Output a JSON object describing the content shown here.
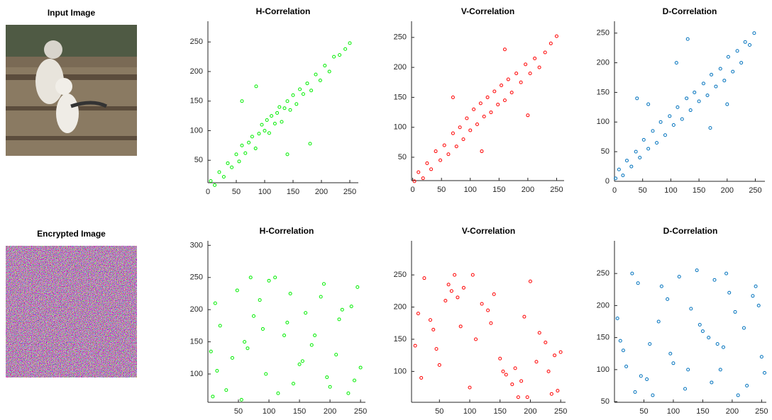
{
  "chart_data": [
    {
      "type": "image",
      "title": "Input Image"
    },
    {
      "type": "scatter",
      "title": "H-Correlation",
      "color": "#00ee00",
      "x": [
        5,
        12,
        20,
        28,
        35,
        42,
        50,
        55,
        60,
        66,
        72,
        78,
        84,
        90,
        95,
        100,
        104,
        108,
        112,
        118,
        122,
        126,
        130,
        135,
        140,
        145,
        150,
        156,
        162,
        168,
        175,
        182,
        190,
        198,
        206,
        214,
        222,
        232,
        242,
        250,
        60,
        85,
        180,
        140
      ],
      "values": [
        15,
        8,
        30,
        22,
        45,
        38,
        60,
        48,
        75,
        62,
        80,
        90,
        70,
        95,
        110,
        100,
        118,
        96,
        125,
        112,
        130,
        140,
        115,
        138,
        150,
        135,
        160,
        145,
        170,
        162,
        180,
        168,
        195,
        185,
        210,
        200,
        225,
        228,
        238,
        248,
        150,
        175,
        78,
        60
      ],
      "xlim": [
        0,
        265
      ],
      "ylim": [
        12,
        285
      ],
      "xticks": [
        0,
        50,
        100,
        150,
        200,
        250
      ],
      "yticks": [
        50,
        100,
        150,
        200,
        250
      ]
    },
    {
      "type": "scatter",
      "title": "V-Correlation",
      "color": "#ff0000",
      "x": [
        3,
        10,
        18,
        25,
        32,
        40,
        48,
        55,
        62,
        70,
        76,
        82,
        88,
        94,
        100,
        106,
        112,
        118,
        124,
        130,
        136,
        142,
        148,
        154,
        160,
        166,
        172,
        180,
        188,
        196,
        204,
        212,
        220,
        230,
        240,
        250,
        70,
        120,
        200,
        160
      ],
      "values": [
        10,
        25,
        15,
        40,
        30,
        60,
        45,
        70,
        55,
        90,
        68,
        100,
        80,
        115,
        95,
        130,
        105,
        140,
        118,
        150,
        125,
        160,
        138,
        170,
        145,
        180,
        158,
        190,
        175,
        205,
        190,
        215,
        200,
        225,
        240,
        252,
        150,
        60,
        120,
        230
      ],
      "xlim": [
        -2,
        263
      ],
      "ylim": [
        11,
        277
      ],
      "xticks": [
        0,
        50,
        100,
        150,
        200,
        250
      ],
      "yticks": [
        50,
        100,
        150,
        200,
        250
      ]
    },
    {
      "type": "scatter",
      "title": "D-Correlation",
      "color": "#0072bd",
      "x": [
        2,
        8,
        15,
        22,
        30,
        38,
        45,
        52,
        60,
        68,
        75,
        82,
        90,
        98,
        105,
        112,
        120,
        128,
        135,
        142,
        150,
        158,
        165,
        172,
        180,
        188,
        195,
        202,
        210,
        218,
        225,
        232,
        240,
        248,
        110,
        60,
        170,
        200,
        40,
        130
      ],
      "values": [
        5,
        20,
        10,
        35,
        25,
        50,
        40,
        70,
        55,
        85,
        65,
        100,
        78,
        110,
        95,
        125,
        105,
        140,
        120,
        150,
        135,
        165,
        145,
        180,
        160,
        190,
        170,
        210,
        185,
        220,
        200,
        235,
        230,
        250,
        200,
        130,
        90,
        130,
        140,
        240
      ],
      "xlim": [
        0,
        267
      ],
      "ylim": [
        0,
        270
      ],
      "xticks": [
        0,
        50,
        100,
        150,
        200,
        250
      ],
      "yticks": [
        0,
        50,
        100,
        150,
        200,
        250
      ]
    },
    {
      "type": "image",
      "title": "Encrypted Image"
    },
    {
      "type": "scatter",
      "title": "H-Correlation",
      "color": "#00ee00",
      "x": [
        12,
        240,
        130,
        65,
        190,
        30,
        155,
        220,
        95,
        48,
        175,
        8,
        210,
        110,
        75,
        250,
        140,
        20,
        185,
        60,
        230,
        100,
        160,
        40,
        200,
        125,
        85,
        245,
        15,
        170,
        55,
        215,
        135,
        5,
        195,
        90,
        235,
        150,
        70,
        115
      ],
      "values": [
        210,
        90,
        180,
        140,
        240,
        75,
        120,
        200,
        100,
        230,
        160,
        65,
        130,
        250,
        190,
        110,
        85,
        175,
        220,
        150,
        70,
        245,
        195,
        125,
        80,
        160,
        215,
        235,
        105,
        145,
        60,
        185,
        225,
        135,
        95,
        170,
        205,
        115,
        250,
        70
      ],
      "xlim": [
        0,
        258
      ],
      "ylim": [
        56,
        307
      ],
      "xticks": [
        50,
        100,
        150,
        200,
        250
      ],
      "yticks": [
        100,
        150,
        200,
        250,
        300
      ]
    },
    {
      "type": "scatter",
      "title": "V-Correlation",
      "color": "#ff0000",
      "x": [
        20,
        200,
        110,
        245,
        60,
        150,
        35,
        180,
        90,
        230,
        130,
        10,
        170,
        75,
        215,
        50,
        140,
        250,
        100,
        190,
        25,
        160,
        85,
        235,
        120,
        45,
        210,
        70,
        185,
        15,
        225,
        105,
        155,
        40,
        195,
        80,
        240,
        135,
        65,
        175
      ],
      "values": [
        90,
        240,
        150,
        70,
        210,
        120,
        180,
        60,
        230,
        100,
        195,
        140,
        80,
        250,
        160,
        110,
        220,
        130,
        75,
        185,
        245,
        95,
        170,
        65,
        205,
        135,
        115,
        225,
        85,
        190,
        145,
        250,
        100,
        165,
        60,
        215,
        125,
        175,
        235,
        105
      ],
      "xlim": [
        4,
        258
      ],
      "ylim": [
        52,
        303
      ],
      "xticks": [
        50,
        100,
        150,
        200,
        250
      ],
      "yticks": [
        100,
        150,
        200,
        250
      ]
    },
    {
      "type": "scatter",
      "title": "D-Correlation",
      "color": "#0072bd",
      "x": [
        5,
        120,
        240,
        60,
        180,
        30,
        150,
        210,
        90,
        250,
        45,
        170,
        15,
        130,
        225,
        75,
        195,
        100,
        160,
        35,
        245,
        110,
        55,
        185,
        140,
        220,
        20,
        80,
        205,
        165,
        10,
        235,
        125,
        65,
        190,
        95,
        145,
        255,
        40,
        175
      ],
      "values": [
        180,
        70,
        230,
        140,
        100,
        250,
        160,
        60,
        210,
        120,
        90,
        240,
        130,
        195,
        75,
        175,
        220,
        110,
        150,
        65,
        200,
        245,
        85,
        135,
        255,
        165,
        105,
        230,
        190,
        80,
        145,
        215,
        100,
        60,
        250,
        125,
        170,
        95,
        235,
        140
      ],
      "xlim": [
        0,
        258
      ],
      "ylim": [
        49,
        301
      ],
      "xticks": [
        50,
        100,
        150,
        200,
        250
      ],
      "yticks": [
        50,
        100,
        150,
        200,
        250
      ]
    }
  ]
}
